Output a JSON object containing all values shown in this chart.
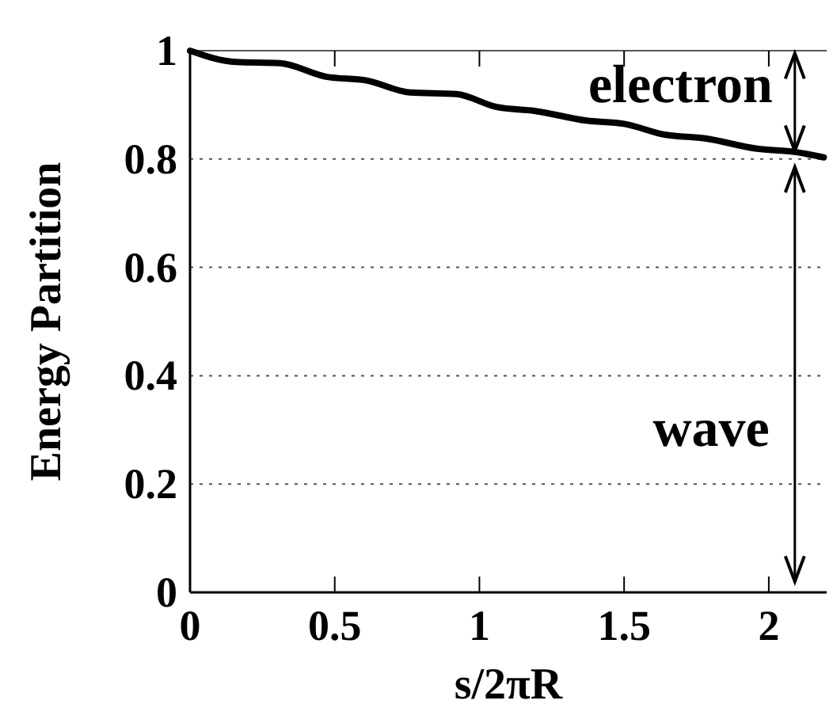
{
  "chart_data": {
    "type": "line",
    "xlabel": "s/2πR",
    "ylabel": "Energy Partition",
    "x": [
      0,
      0.16,
      0.31,
      0.47,
      0.61,
      0.76,
      0.92,
      1.06,
      1.19,
      1.37,
      1.5,
      1.64,
      1.78,
      1.96,
      2.09,
      2.19
    ],
    "series": [
      {
        "color": "#000000",
        "values": [
          1,
          0.979,
          0.977,
          0.952,
          0.945,
          0.923,
          0.92,
          0.896,
          0.889,
          0.871,
          0.865,
          0.845,
          0.838,
          0.819,
          0.813,
          0.803
        ]
      }
    ],
    "xlim": [
      0,
      2.2
    ],
    "xticks": [
      0,
      0.5,
      1,
      1.5,
      2
    ],
    "ylim": [
      0,
      1
    ],
    "yticks": [
      0,
      0.2,
      0.4,
      0.6,
      0.8,
      1
    ],
    "grid": "y",
    "marker": "none",
    "line_style": "solid",
    "annotations": [
      "electron",
      "wave"
    ]
  }
}
